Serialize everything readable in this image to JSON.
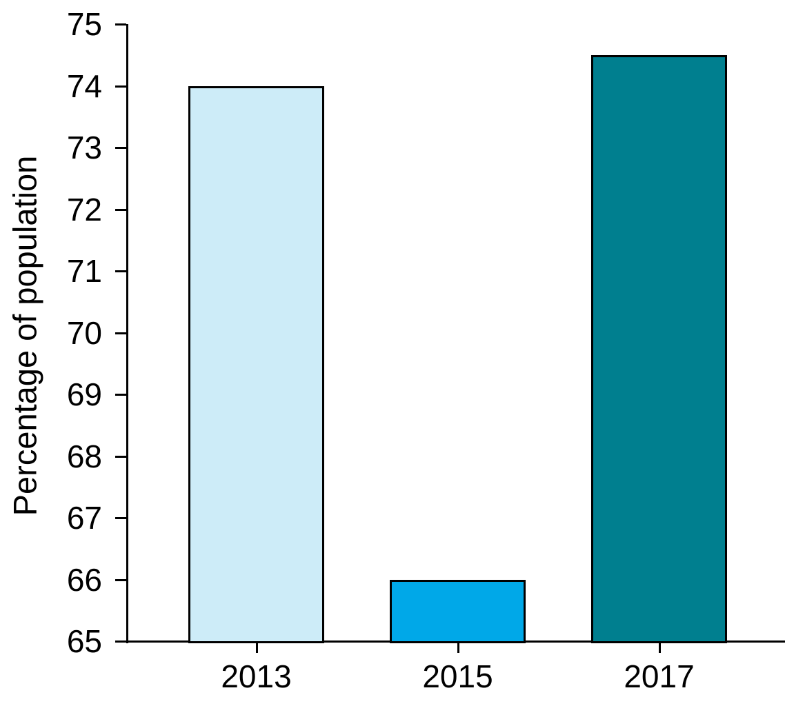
{
  "chart_data": {
    "type": "bar",
    "categories": [
      "2013",
      "2015",
      "2017"
    ],
    "values": [
      74.0,
      66.0,
      74.5
    ],
    "bar_colors": [
      "#cdecf8",
      "#00a8e8",
      "#007f8f"
    ],
    "bar_border_color": "#000000",
    "title": "",
    "xlabel": "",
    "ylabel": "Percentage of population",
    "ylim": [
      65,
      75
    ],
    "yticks": [
      65,
      66,
      67,
      68,
      69,
      70,
      71,
      72,
      73,
      74,
      75
    ],
    "grid": false,
    "legend": null,
    "axis_color": "#000000",
    "background_color": "#ffffff"
  }
}
